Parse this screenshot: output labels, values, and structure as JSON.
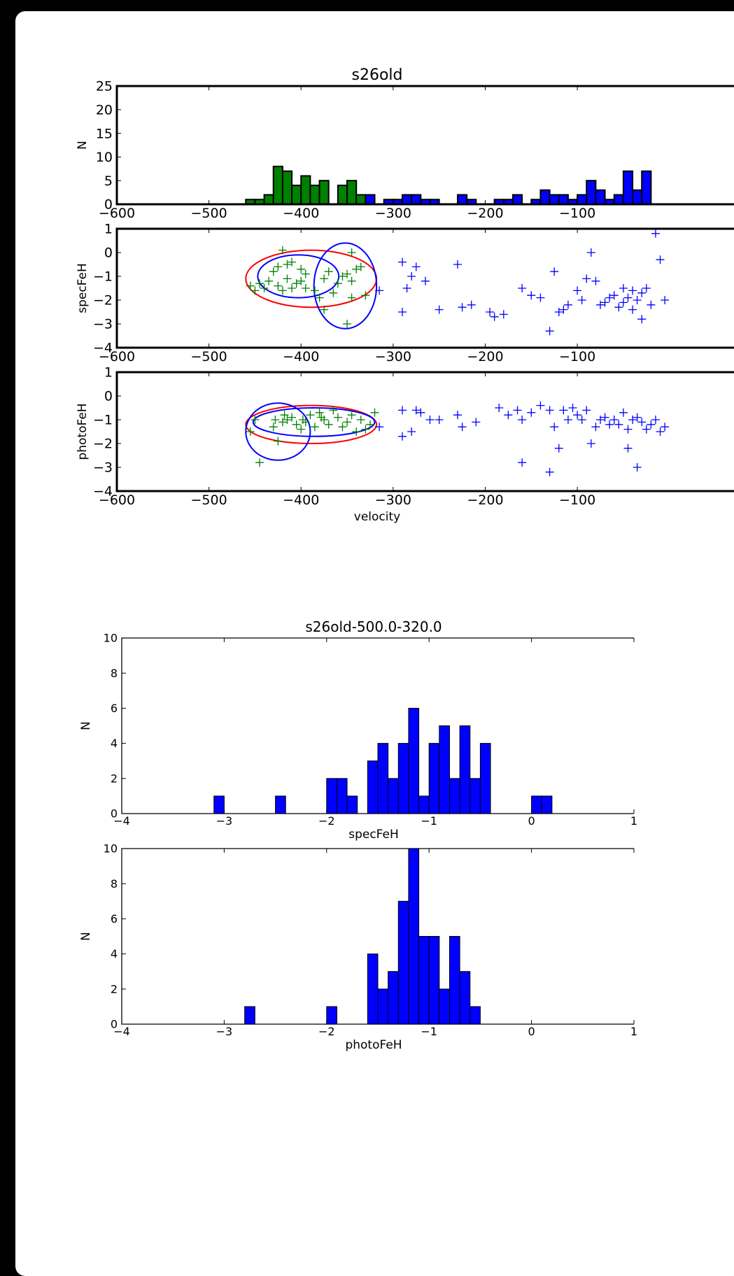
{
  "chart_data": [
    {
      "type": "bar",
      "title": "s26old",
      "xlabel": "",
      "ylabel": "N",
      "xlim": [
        -600,
        80
      ],
      "ylim": [
        0,
        25
      ],
      "x_ticks": [
        -600,
        -500,
        -400,
        -300,
        -200,
        -100
      ],
      "y_ticks": [
        0,
        5,
        10,
        15,
        20,
        25
      ],
      "bin_width": 10,
      "series": [
        {
          "color": "#008000",
          "bins": [
            [
              -460,
              1
            ],
            [
              -450,
              1
            ],
            [
              -440,
              2
            ],
            [
              -430,
              8
            ],
            [
              -420,
              7
            ],
            [
              -410,
              4
            ],
            [
              -400,
              6
            ],
            [
              -390,
              4
            ],
            [
              -380,
              5
            ],
            [
              -360,
              4
            ],
            [
              -350,
              5
            ],
            [
              -340,
              2
            ]
          ]
        },
        {
          "color": "#0000ff",
          "bins": [
            [
              -330,
              2
            ],
            [
              -310,
              1
            ],
            [
              -300,
              1
            ],
            [
              -290,
              2
            ],
            [
              -280,
              2
            ],
            [
              -270,
              1
            ],
            [
              -260,
              1
            ],
            [
              -230,
              2
            ],
            [
              -220,
              1
            ],
            [
              -190,
              1
            ],
            [
              -180,
              1
            ],
            [
              -170,
              2
            ],
            [
              -150,
              1
            ],
            [
              -140,
              3
            ],
            [
              -130,
              2
            ],
            [
              -120,
              2
            ],
            [
              -110,
              1
            ],
            [
              -100,
              2
            ],
            [
              -90,
              5
            ],
            [
              -80,
              3
            ],
            [
              -70,
              1
            ],
            [
              -60,
              2
            ],
            [
              -50,
              7
            ],
            [
              -40,
              3
            ],
            [
              -30,
              7
            ]
          ]
        }
      ]
    },
    {
      "type": "scatter",
      "title": "",
      "xlabel": "",
      "ylabel": "specFeH",
      "xlim": [
        -600,
        80
      ],
      "ylim": [
        -4,
        1
      ],
      "x_ticks": [
        -600,
        -500,
        -400,
        -300,
        -200,
        -100
      ],
      "y_ticks": [
        -4,
        -3,
        -2,
        -1,
        0,
        1
      ],
      "series": [
        {
          "color": "#008000",
          "points": [
            [
              -420,
              0.1
            ],
            [
              -410,
              -0.4
            ],
            [
              -415,
              -0.5
            ],
            [
              -425,
              -0.6
            ],
            [
              -400,
              -0.7
            ],
            [
              -395,
              -0.9
            ],
            [
              -430,
              -0.8
            ],
            [
              -435,
              -1.2
            ],
            [
              -440,
              -1.5
            ],
            [
              -445,
              -1.3
            ],
            [
              -450,
              -1.6
            ],
            [
              -455,
              -1.4
            ],
            [
              -415,
              -1.1
            ],
            [
              -405,
              -1.3
            ],
            [
              -395,
              -1.5
            ],
            [
              -385,
              -1.6
            ],
            [
              -380,
              -1.9
            ],
            [
              -375,
              -1.1
            ],
            [
              -370,
              -0.8
            ],
            [
              -360,
              -1.3
            ],
            [
              -355,
              -1.0
            ],
            [
              -350,
              -0.9
            ],
            [
              -345,
              -1.2
            ],
            [
              -340,
              -0.7
            ],
            [
              -335,
              -0.6
            ],
            [
              -330,
              -1.8
            ],
            [
              -345,
              -1.9
            ],
            [
              -365,
              -1.7
            ],
            [
              -375,
              -2.4
            ],
            [
              -350,
              -3.0
            ],
            [
              -345,
              0.0
            ],
            [
              -425,
              -1.4
            ],
            [
              -420,
              -1.6
            ],
            [
              -410,
              -1.5
            ],
            [
              -400,
              -1.2
            ]
          ]
        },
        {
          "color": "#0000ff",
          "points": [
            [
              -315,
              -1.6
            ],
            [
              -290,
              -0.4
            ],
            [
              -275,
              -0.6
            ],
            [
              -280,
              -1.0
            ],
            [
              -285,
              -1.5
            ],
            [
              -290,
              -2.5
            ],
            [
              -265,
              -1.2
            ],
            [
              -250,
              -2.4
            ],
            [
              -230,
              -0.5
            ],
            [
              -225,
              -2.3
            ],
            [
              -215,
              -2.2
            ],
            [
              -195,
              -2.5
            ],
            [
              -190,
              -2.7
            ],
            [
              -180,
              -2.6
            ],
            [
              -160,
              -1.5
            ],
            [
              -150,
              -1.8
            ],
            [
              -140,
              -1.9
            ],
            [
              -130,
              -3.3
            ],
            [
              -125,
              -0.8
            ],
            [
              -120,
              -2.5
            ],
            [
              -115,
              -2.4
            ],
            [
              -110,
              -2.2
            ],
            [
              -100,
              -1.6
            ],
            [
              -95,
              -2.0
            ],
            [
              -90,
              -1.1
            ],
            [
              -85,
              0.0
            ],
            [
              -80,
              -1.2
            ],
            [
              -75,
              -2.2
            ],
            [
              -70,
              -2.1
            ],
            [
              -65,
              -1.9
            ],
            [
              -60,
              -1.8
            ],
            [
              -55,
              -2.3
            ],
            [
              -50,
              -2.1
            ],
            [
              -45,
              -1.9
            ],
            [
              -40,
              -1.6
            ],
            [
              -35,
              -2.0
            ],
            [
              -30,
              -2.8
            ],
            [
              -25,
              -1.5
            ],
            [
              -20,
              -2.2
            ],
            [
              -15,
              0.8
            ],
            [
              -10,
              -0.3
            ],
            [
              -5,
              -2.0
            ],
            [
              -50,
              -1.5
            ],
            [
              -40,
              -2.4
            ],
            [
              -30,
              -1.7
            ]
          ]
        }
      ],
      "ellipses": [
        {
          "color": "#ff0000",
          "center": [
            -389,
            -1.1
          ],
          "semi_axes": [
            71,
            1.2
          ]
        },
        {
          "color": "#0000ff",
          "center": [
            -403,
            -1.0
          ],
          "semi_axes": [
            44,
            0.9
          ]
        },
        {
          "color": "#0000ff",
          "center": [
            -352,
            -1.4
          ],
          "semi_axes": [
            34,
            1.8
          ]
        }
      ]
    },
    {
      "type": "scatter",
      "title": "",
      "xlabel": "velocity",
      "ylabel": "photoFeH",
      "xlim": [
        -600,
        80
      ],
      "ylim": [
        -4,
        1
      ],
      "x_ticks": [
        -600,
        -500,
        -400,
        -300,
        -200,
        -100
      ],
      "y_ticks": [
        -4,
        -3,
        -2,
        -1,
        0,
        1
      ],
      "series": [
        {
          "color": "#008000",
          "points": [
            [
              -445,
              -2.8
            ],
            [
              -450,
              -1.0
            ],
            [
              -455,
              -1.5
            ],
            [
              -425,
              -1.9
            ],
            [
              -430,
              -1.3
            ],
            [
              -420,
              -1.1
            ],
            [
              -415,
              -1.0
            ],
            [
              -410,
              -0.9
            ],
            [
              -405,
              -1.2
            ],
            [
              -400,
              -1.4
            ],
            [
              -395,
              -1.1
            ],
            [
              -390,
              -0.8
            ],
            [
              -385,
              -1.3
            ],
            [
              -380,
              -0.7
            ],
            [
              -375,
              -1.0
            ],
            [
              -370,
              -1.2
            ],
            [
              -365,
              -0.6
            ],
            [
              -360,
              -0.9
            ],
            [
              -355,
              -1.3
            ],
            [
              -350,
              -1.1
            ],
            [
              -345,
              -0.8
            ],
            [
              -340,
              -1.5
            ],
            [
              -335,
              -1.0
            ],
            [
              -330,
              -1.4
            ],
            [
              -325,
              -1.2
            ],
            [
              -320,
              -0.7
            ],
            [
              -428,
              -1.0
            ],
            [
              -418,
              -0.8
            ],
            [
              -398,
              -1.0
            ],
            [
              -378,
              -0.9
            ]
          ]
        },
        {
          "color": "#0000ff",
          "points": [
            [
              -315,
              -1.3
            ],
            [
              -290,
              -0.6
            ],
            [
              -290,
              -1.7
            ],
            [
              -280,
              -1.5
            ],
            [
              -275,
              -0.6
            ],
            [
              -270,
              -0.7
            ],
            [
              -260,
              -1.0
            ],
            [
              -250,
              -1.0
            ],
            [
              -230,
              -0.8
            ],
            [
              -225,
              -1.3
            ],
            [
              -210,
              -1.1
            ],
            [
              -185,
              -0.5
            ],
            [
              -175,
              -0.8
            ],
            [
              -165,
              -0.6
            ],
            [
              -160,
              -1.0
            ],
            [
              -160,
              -2.8
            ],
            [
              -150,
              -0.7
            ],
            [
              -140,
              -0.4
            ],
            [
              -130,
              -0.6
            ],
            [
              -130,
              -3.2
            ],
            [
              -125,
              -1.3
            ],
            [
              -120,
              -2.2
            ],
            [
              -115,
              -0.6
            ],
            [
              -110,
              -1.0
            ],
            [
              -105,
              -0.5
            ],
            [
              -100,
              -0.8
            ],
            [
              -95,
              -1.0
            ],
            [
              -90,
              -0.6
            ],
            [
              -85,
              -2.0
            ],
            [
              -80,
              -1.3
            ],
            [
              -75,
              -1.0
            ],
            [
              -70,
              -0.9
            ],
            [
              -65,
              -1.2
            ],
            [
              -60,
              -1.0
            ],
            [
              -55,
              -1.2
            ],
            [
              -50,
              -0.7
            ],
            [
              -45,
              -1.4
            ],
            [
              -40,
              -1.0
            ],
            [
              -35,
              -0.9
            ],
            [
              -30,
              -1.1
            ],
            [
              -25,
              -1.4
            ],
            [
              -20,
              -1.2
            ],
            [
              -15,
              -1.0
            ],
            [
              -10,
              -1.5
            ],
            [
              -5,
              -1.3
            ],
            [
              -45,
              -2.2
            ],
            [
              -35,
              -3.0
            ]
          ]
        }
      ],
      "ellipses": [
        {
          "color": "#ff0000",
          "center": [
            -389,
            -1.2
          ],
          "semi_axes": [
            71,
            0.8
          ]
        },
        {
          "color": "#0000ff",
          "center": [
            -386,
            -1.1
          ],
          "semi_axes": [
            66,
            0.6
          ]
        },
        {
          "color": "#0000ff",
          "center": [
            -425,
            -1.5
          ],
          "semi_axes": [
            35,
            1.2
          ]
        }
      ]
    },
    {
      "type": "bar",
      "title": "s26old-500.0-320.0",
      "xlabel": "specFeH",
      "ylabel": "N",
      "xlim": [
        -4,
        1
      ],
      "ylim": [
        0,
        10
      ],
      "x_ticks": [
        -4,
        -3,
        -2,
        -1,
        0,
        1
      ],
      "y_ticks": [
        0,
        2,
        4,
        6,
        8,
        10
      ],
      "color": "#0000ff",
      "bin_width": 0.1,
      "bins": [
        [
          -3.1,
          1
        ],
        [
          -2.5,
          1
        ],
        [
          -2.0,
          2
        ],
        [
          -1.9,
          2
        ],
        [
          -1.8,
          1
        ],
        [
          -1.6,
          3
        ],
        [
          -1.5,
          4
        ],
        [
          -1.4,
          2
        ],
        [
          -1.3,
          4
        ],
        [
          -1.2,
          6
        ],
        [
          -1.1,
          1
        ],
        [
          -1.0,
          4
        ],
        [
          -0.9,
          5
        ],
        [
          -0.8,
          2
        ],
        [
          -0.7,
          5
        ],
        [
          -0.6,
          2
        ],
        [
          -0.5,
          4
        ],
        [
          0.0,
          1
        ],
        [
          0.1,
          1
        ]
      ]
    },
    {
      "type": "bar",
      "title": "",
      "xlabel": "photoFeH",
      "ylabel": "N",
      "xlim": [
        -4,
        1
      ],
      "ylim": [
        0,
        10
      ],
      "x_ticks": [
        -4,
        -3,
        -2,
        -1,
        0,
        1
      ],
      "y_ticks": [
        0,
        2,
        4,
        6,
        8,
        10
      ],
      "color": "#0000ff",
      "bin_width": 0.1,
      "bins": [
        [
          -2.8,
          1
        ],
        [
          -2.0,
          1
        ],
        [
          -1.6,
          4
        ],
        [
          -1.5,
          2
        ],
        [
          -1.4,
          3
        ],
        [
          -1.3,
          7
        ],
        [
          -1.2,
          10
        ],
        [
          -1.1,
          5
        ],
        [
          -1.0,
          5
        ],
        [
          -0.9,
          2
        ],
        [
          -0.8,
          5
        ],
        [
          -0.7,
          3
        ],
        [
          -0.6,
          1
        ]
      ]
    }
  ]
}
